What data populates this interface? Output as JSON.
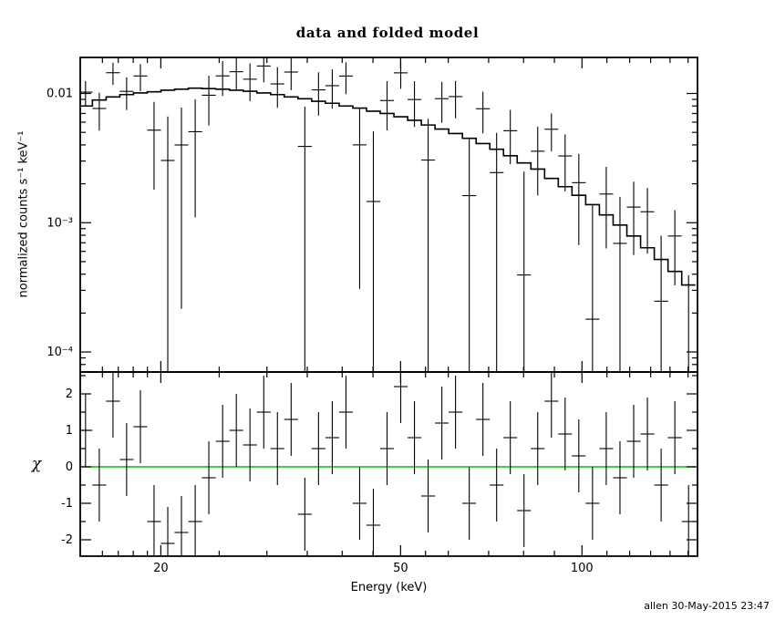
{
  "footer": {
    "text": "allen 30-May-2015 23:47"
  },
  "colors": {
    "frame": "#000000",
    "data": "#000000",
    "model": "#000000",
    "zero_line": "#00bf00",
    "background": "#ffffff"
  },
  "chart_data": {
    "type": "line",
    "title": "data and folded model",
    "xlabel": "Energy (keV)",
    "ylabel_top": "normalized counts s⁻¹ keV⁻¹",
    "ylabel_bottom": "χ",
    "x_scale": "log",
    "y_scale_top": "log",
    "y_scale_bottom": "linear",
    "xlim": [
      14.7,
      155.5
    ],
    "ylim_top": [
      7e-05,
      0.019
    ],
    "ylim_bottom": [
      -2.45,
      2.6
    ],
    "xticks": [
      {
        "v": 20,
        "label": "20"
      },
      {
        "v": 50,
        "label": "50"
      },
      {
        "v": 100,
        "label": "100"
      }
    ],
    "xticks_minor": [
      16,
      17,
      18,
      19,
      25,
      30,
      35,
      40,
      45,
      55,
      60,
      70,
      80,
      90,
      110,
      120,
      130,
      140,
      150
    ],
    "yticks_top": [
      {
        "v": 0.01,
        "label": "0.01"
      },
      {
        "v": 0.001,
        "label": "10⁻³"
      },
      {
        "v": 0.0001,
        "label": "10⁻⁴"
      }
    ],
    "yticks_bottom": [
      {
        "v": -2,
        "label": "-2"
      },
      {
        "v": -1,
        "label": "-1"
      },
      {
        "v": 0,
        "label": "0"
      },
      {
        "v": 1,
        "label": "1"
      },
      {
        "v": 2,
        "label": "2"
      }
    ],
    "yticks_bottom_minor": [
      -1.5,
      -0.5,
      0.5,
      1.5,
      2.5
    ],
    "legend": "none",
    "grid": false,
    "energy_kev": [
      15.0,
      15.81,
      16.66,
      17.55,
      18.5,
      19.49,
      20.54,
      21.64,
      22.81,
      24.03,
      25.33,
      26.69,
      28.12,
      29.64,
      31.23,
      32.91,
      34.68,
      36.54,
      38.51,
      40.58,
      42.76,
      45.06,
      47.48,
      50.03,
      52.72,
      55.55,
      58.54,
      61.68,
      65.0,
      68.49,
      72.17,
      76.04,
      80.13,
      84.44,
      88.98,
      93.76,
      98.8,
      104.11,
      109.72,
      115.63,
      121.85,
      128.41,
      135.32,
      142.61,
      150.28
    ],
    "model_counts": [
      0.008,
      0.0089,
      0.0094,
      0.0098,
      0.0101,
      0.0103,
      0.0106,
      0.0108,
      0.011,
      0.0109,
      0.0108,
      0.0106,
      0.0104,
      0.0101,
      0.0098,
      0.0094,
      0.0091,
      0.0087,
      0.0084,
      0.008,
      0.0077,
      0.0073,
      0.007,
      0.0066,
      0.0062,
      0.0057,
      0.0053,
      0.0049,
      0.0045,
      0.0041,
      0.0037,
      0.0033,
      0.0029,
      0.0026,
      0.0022,
      0.0019,
      0.00163,
      0.00138,
      0.00115,
      0.00096,
      0.00079,
      0.00064,
      0.00052,
      0.00042,
      0.00033
    ],
    "chi": [
      1.0,
      -0.5,
      1.8,
      0.2,
      1.1,
      -1.5,
      -2.1,
      -1.8,
      -1.5,
      -0.3,
      0.7,
      1.0,
      0.6,
      1.5,
      0.5,
      1.3,
      -1.3,
      0.5,
      0.8,
      1.5,
      -1.0,
      -1.6,
      0.5,
      2.2,
      0.8,
      -0.8,
      1.2,
      1.5,
      -1.0,
      1.3,
      -0.5,
      0.8,
      -1.2,
      0.5,
      1.8,
      0.9,
      0.3,
      -1.0,
      0.5,
      -0.3,
      0.7,
      0.9,
      -0.5,
      0.8,
      -1.5
    ],
    "rel_err": [
      0.28,
      0.28,
      0.3,
      0.3,
      0.32,
      0.33,
      0.34,
      0.35,
      0.36,
      0.37,
      0.38,
      0.39,
      0.4,
      0.41,
      0.42,
      0.43,
      0.44,
      0.45,
      0.46,
      0.47,
      0.48,
      0.5,
      0.52,
      0.54,
      0.56,
      0.58,
      0.6,
      0.62,
      0.64,
      0.66,
      0.68,
      0.7,
      0.72,
      0.75,
      0.78,
      0.81,
      0.84,
      0.87,
      0.9,
      0.93,
      0.96,
      1.0,
      1.05,
      1.1,
      1.15
    ],
    "chi_err": 1.0,
    "data_rule": "data = model*(1+chi*rel_err); sigma = model*rel_err"
  }
}
